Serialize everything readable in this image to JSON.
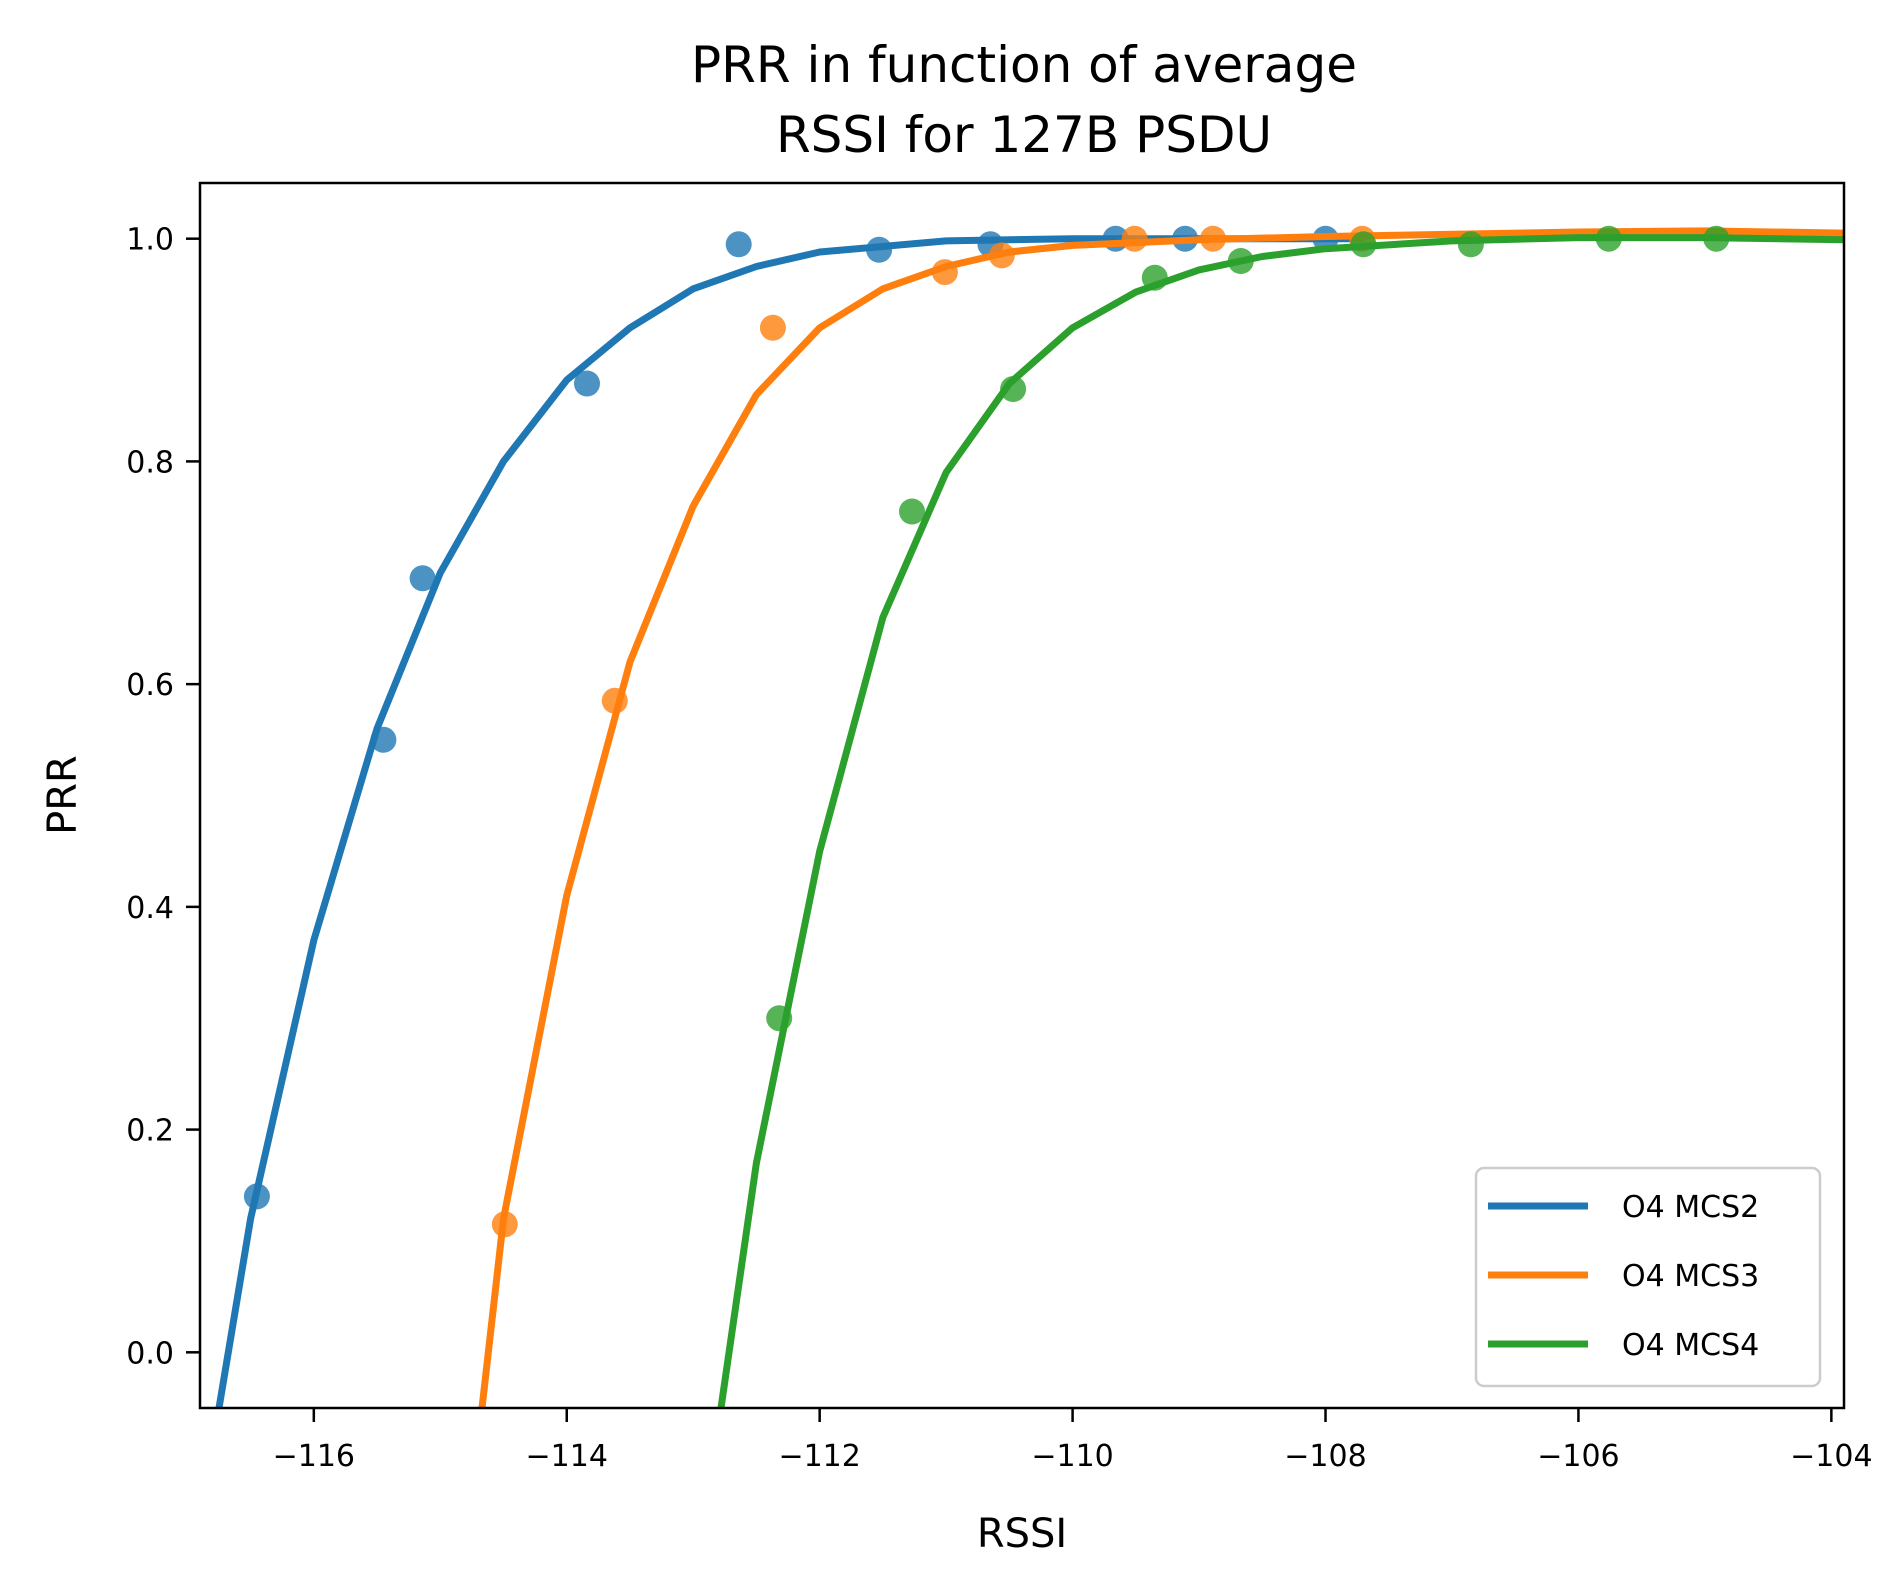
{
  "chart_data": {
    "type": "scatter",
    "title_lines": [
      "PRR in function of average",
      "RSSI for 127B PSDU"
    ],
    "xlabel": "RSSI",
    "ylabel": "PRR",
    "xlim": [
      -116.9,
      -103.9
    ],
    "ylim": [
      -0.05,
      1.05
    ],
    "xticks": [
      -116,
      -114,
      -112,
      -110,
      -108,
      -106,
      -104
    ],
    "xtick_labels": [
      "−116",
      "−114",
      "−112",
      "−110",
      "−108",
      "−106",
      "−104"
    ],
    "yticks": [
      0.0,
      0.2,
      0.4,
      0.6,
      0.8,
      1.0
    ],
    "ytick_labels": [
      "0.0",
      "0.2",
      "0.4",
      "0.6",
      "0.8",
      "1.0"
    ],
    "grid": false,
    "legend_position": "bottom-right",
    "series": [
      {
        "name": "O4 MCS2",
        "color": "#1f77b4",
        "points": [
          {
            "x": -116.45,
            "y": 0.14
          },
          {
            "x": -115.45,
            "y": 0.55
          },
          {
            "x": -115.14,
            "y": 0.695
          },
          {
            "x": -113.84,
            "y": 0.87
          },
          {
            "x": -112.64,
            "y": 0.995
          },
          {
            "x": -111.53,
            "y": 0.99
          },
          {
            "x": -110.65,
            "y": 0.995
          },
          {
            "x": -109.66,
            "y": 1.0
          },
          {
            "x": -109.11,
            "y": 1.0
          },
          {
            "x": -108.0,
            "y": 1.0
          }
        ],
        "fit": [
          {
            "x": -116.75,
            "y": -0.05
          },
          {
            "x": -116.5,
            "y": 0.12
          },
          {
            "x": -116.0,
            "y": 0.37
          },
          {
            "x": -115.5,
            "y": 0.56
          },
          {
            "x": -115.0,
            "y": 0.7
          },
          {
            "x": -114.5,
            "y": 0.8
          },
          {
            "x": -114.0,
            "y": 0.873
          },
          {
            "x": -113.5,
            "y": 0.92
          },
          {
            "x": -113.0,
            "y": 0.955
          },
          {
            "x": -112.5,
            "y": 0.975
          },
          {
            "x": -112.0,
            "y": 0.988
          },
          {
            "x": -111.0,
            "y": 0.998
          },
          {
            "x": -110.0,
            "y": 1.0
          },
          {
            "x": -107.7,
            "y": 1.0
          }
        ]
      },
      {
        "name": "O4 MCS3",
        "color": "#ff7f0e",
        "points": [
          {
            "x": -114.49,
            "y": 0.115
          },
          {
            "x": -113.62,
            "y": 0.585
          },
          {
            "x": -112.37,
            "y": 0.92
          },
          {
            "x": -111.01,
            "y": 0.97
          },
          {
            "x": -110.56,
            "y": 0.985
          },
          {
            "x": -109.51,
            "y": 1.0
          },
          {
            "x": -108.89,
            "y": 1.0
          },
          {
            "x": -107.71,
            "y": 1.0
          }
        ],
        "fit": [
          {
            "x": -114.67,
            "y": -0.05
          },
          {
            "x": -114.5,
            "y": 0.12
          },
          {
            "x": -114.0,
            "y": 0.41
          },
          {
            "x": -113.5,
            "y": 0.62
          },
          {
            "x": -113.0,
            "y": 0.76
          },
          {
            "x": -112.5,
            "y": 0.86
          },
          {
            "x": -112.0,
            "y": 0.92
          },
          {
            "x": -111.5,
            "y": 0.955
          },
          {
            "x": -111.0,
            "y": 0.975
          },
          {
            "x": -110.5,
            "y": 0.988
          },
          {
            "x": -110.0,
            "y": 0.994
          },
          {
            "x": -109.0,
            "y": 0.999
          },
          {
            "x": -108.0,
            "y": 1.002
          },
          {
            "x": -106.0,
            "y": 1.006
          },
          {
            "x": -105.0,
            "y": 1.007
          },
          {
            "x": -103.9,
            "y": 1.005
          }
        ]
      },
      {
        "name": "O4 MCS4",
        "color": "#2ca02c",
        "points": [
          {
            "x": -112.32,
            "y": 0.3
          },
          {
            "x": -111.27,
            "y": 0.755
          },
          {
            "x": -110.47,
            "y": 0.865
          },
          {
            "x": -109.35,
            "y": 0.965
          },
          {
            "x": -108.67,
            "y": 0.98
          },
          {
            "x": -107.7,
            "y": 0.995
          },
          {
            "x": -106.85,
            "y": 0.995
          },
          {
            "x": -105.76,
            "y": 1.0
          },
          {
            "x": -104.91,
            "y": 1.0
          }
        ],
        "fit": [
          {
            "x": -112.78,
            "y": -0.05
          },
          {
            "x": -112.5,
            "y": 0.17
          },
          {
            "x": -112.0,
            "y": 0.45
          },
          {
            "x": -111.5,
            "y": 0.66
          },
          {
            "x": -111.0,
            "y": 0.79
          },
          {
            "x": -110.5,
            "y": 0.87
          },
          {
            "x": -110.0,
            "y": 0.92
          },
          {
            "x": -109.5,
            "y": 0.952
          },
          {
            "x": -109.0,
            "y": 0.972
          },
          {
            "x": -108.5,
            "y": 0.984
          },
          {
            "x": -108.0,
            "y": 0.991
          },
          {
            "x": -107.0,
            "y": 0.998
          },
          {
            "x": -106.0,
            "y": 1.001
          },
          {
            "x": -105.0,
            "y": 1.001
          },
          {
            "x": -103.9,
            "y": 0.999
          }
        ]
      }
    ]
  }
}
